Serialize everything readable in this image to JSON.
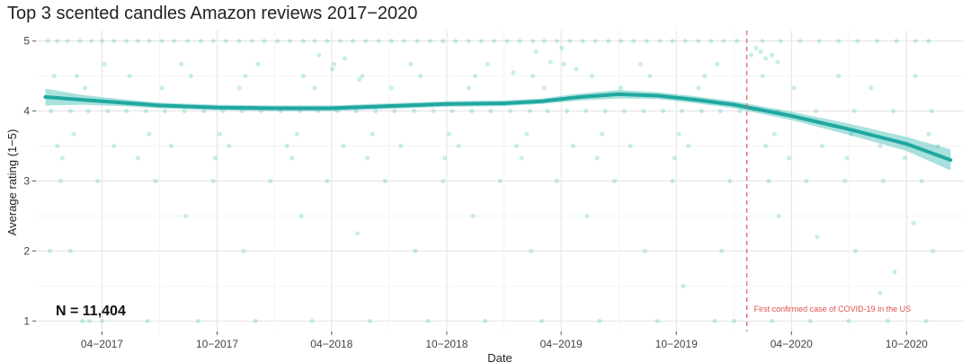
{
  "chart_data": {
    "type": "scatter",
    "title": "Top 3 scented candles Amazon reviews 2017−2020",
    "xlabel": "Date",
    "ylabel": "Average rating (1−5)",
    "xlim": [
      "2016-12-17",
      "2020-12-31"
    ],
    "ylim": [
      0.85,
      5.15
    ],
    "x_ticks": [
      {
        "date": "2017-04-01",
        "label": "04−2017"
      },
      {
        "date": "2017-10-01",
        "label": "10−2017"
      },
      {
        "date": "2018-04-01",
        "label": "04−2018"
      },
      {
        "date": "2018-10-01",
        "label": "10−2018"
      },
      {
        "date": "2019-04-01",
        "label": "04−2019"
      },
      {
        "date": "2019-10-01",
        "label": "10−2019"
      },
      {
        "date": "2020-04-01",
        "label": "04−2020"
      },
      {
        "date": "2020-10-01",
        "label": "10−2020"
      }
    ],
    "y_ticks": [
      1,
      2,
      3,
      4,
      5
    ],
    "grid": true,
    "point_color": "#3dbdb5",
    "smooth_color": "#1fa8a0",
    "band_color": "#3dbdb5",
    "covid_line_color": "#d96a63",
    "n_label": "N = 11,404",
    "annotation": {
      "date": "2020-01-21",
      "text": "First confirmed case of COVID-19 in the US"
    },
    "smooth": [
      {
        "x": "2017-01-01",
        "y": 4.2,
        "se": 0.12
      },
      {
        "x": "2017-03-01",
        "y": 4.16,
        "se": 0.07
      },
      {
        "x": "2017-05-01",
        "y": 4.12,
        "se": 0.05
      },
      {
        "x": "2017-07-01",
        "y": 4.08,
        "se": 0.04
      },
      {
        "x": "2017-10-01",
        "y": 4.05,
        "se": 0.04
      },
      {
        "x": "2018-01-01",
        "y": 4.04,
        "se": 0.04
      },
      {
        "x": "2018-04-01",
        "y": 4.04,
        "se": 0.04
      },
      {
        "x": "2018-07-01",
        "y": 4.07,
        "se": 0.04
      },
      {
        "x": "2018-10-01",
        "y": 4.1,
        "se": 0.04
      },
      {
        "x": "2019-01-01",
        "y": 4.11,
        "se": 0.04
      },
      {
        "x": "2019-03-01",
        "y": 4.14,
        "se": 0.04
      },
      {
        "x": "2019-05-01",
        "y": 4.2,
        "se": 0.05
      },
      {
        "x": "2019-07-01",
        "y": 4.24,
        "se": 0.06
      },
      {
        "x": "2019-09-01",
        "y": 4.22,
        "se": 0.05
      },
      {
        "x": "2019-11-01",
        "y": 4.16,
        "se": 0.05
      },
      {
        "x": "2020-01-01",
        "y": 4.09,
        "se": 0.05
      },
      {
        "x": "2020-04-01",
        "y": 3.93,
        "se": 0.06
      },
      {
        "x": "2020-07-01",
        "y": 3.74,
        "se": 0.08
      },
      {
        "x": "2020-10-01",
        "y": 3.53,
        "se": 0.1
      },
      {
        "x": "2020-12-10",
        "y": 3.3,
        "se": 0.15
      }
    ],
    "points": [
      [
        "2017-01-05",
        5
      ],
      [
        "2017-01-20",
        5
      ],
      [
        "2017-02-05",
        5
      ],
      [
        "2017-02-25",
        5
      ],
      [
        "2017-03-15",
        5
      ],
      [
        "2017-04-01",
        5
      ],
      [
        "2017-04-20",
        5
      ],
      [
        "2017-05-10",
        5
      ],
      [
        "2017-05-28",
        5
      ],
      [
        "2017-06-15",
        5
      ],
      [
        "2017-07-05",
        5
      ],
      [
        "2017-07-25",
        5
      ],
      [
        "2017-08-15",
        5
      ],
      [
        "2017-09-05",
        5
      ],
      [
        "2017-09-25",
        5
      ],
      [
        "2017-10-15",
        5
      ],
      [
        "2017-11-05",
        5
      ],
      [
        "2017-11-25",
        5
      ],
      [
        "2017-12-15",
        5
      ],
      [
        "2018-01-05",
        5
      ],
      [
        "2018-01-25",
        5
      ],
      [
        "2018-02-15",
        5
      ],
      [
        "2018-03-05",
        5
      ],
      [
        "2018-03-25",
        5
      ],
      [
        "2018-04-15",
        5
      ],
      [
        "2018-05-05",
        5
      ],
      [
        "2018-05-25",
        5
      ],
      [
        "2018-06-15",
        5
      ],
      [
        "2018-07-05",
        5
      ],
      [
        "2018-07-25",
        5
      ],
      [
        "2018-08-15",
        5
      ],
      [
        "2018-09-05",
        5
      ],
      [
        "2018-09-25",
        5
      ],
      [
        "2018-10-15",
        5
      ],
      [
        "2018-11-05",
        5
      ],
      [
        "2018-11-25",
        5
      ],
      [
        "2018-12-15",
        5
      ],
      [
        "2019-01-05",
        5
      ],
      [
        "2019-01-25",
        5
      ],
      [
        "2019-02-15",
        5
      ],
      [
        "2019-03-05",
        5
      ],
      [
        "2019-03-25",
        5
      ],
      [
        "2019-04-15",
        5
      ],
      [
        "2019-05-05",
        5
      ],
      [
        "2019-05-25",
        5
      ],
      [
        "2019-06-15",
        5
      ],
      [
        "2019-07-05",
        5
      ],
      [
        "2019-07-25",
        5
      ],
      [
        "2019-08-15",
        5
      ],
      [
        "2019-09-05",
        5
      ],
      [
        "2019-09-25",
        5
      ],
      [
        "2019-10-15",
        5
      ],
      [
        "2019-11-05",
        5
      ],
      [
        "2019-11-25",
        5
      ],
      [
        "2019-12-15",
        5
      ],
      [
        "2020-01-05",
        5
      ],
      [
        "2020-02-15",
        5
      ],
      [
        "2020-03-15",
        5
      ],
      [
        "2020-04-15",
        5
      ],
      [
        "2020-05-15",
        5
      ],
      [
        "2020-06-15",
        5
      ],
      [
        "2020-07-15",
        5
      ],
      [
        "2020-08-15",
        5
      ],
      [
        "2020-09-15",
        5
      ],
      [
        "2020-10-15",
        5
      ],
      [
        "2020-11-05",
        5
      ],
      [
        "2017-01-10",
        4
      ],
      [
        "2017-02-10",
        4
      ],
      [
        "2017-03-10",
        4
      ],
      [
        "2017-04-10",
        4
      ],
      [
        "2017-05-10",
        4
      ],
      [
        "2017-06-10",
        4
      ],
      [
        "2017-07-10",
        4
      ],
      [
        "2017-08-10",
        4
      ],
      [
        "2017-09-10",
        4
      ],
      [
        "2017-10-10",
        4
      ],
      [
        "2017-11-10",
        4
      ],
      [
        "2017-12-10",
        4
      ],
      [
        "2018-01-10",
        4
      ],
      [
        "2018-02-10",
        4
      ],
      [
        "2018-03-10",
        4
      ],
      [
        "2018-04-10",
        4
      ],
      [
        "2018-05-10",
        4
      ],
      [
        "2018-06-10",
        4
      ],
      [
        "2018-07-10",
        4
      ],
      [
        "2018-08-10",
        4
      ],
      [
        "2018-09-10",
        4
      ],
      [
        "2018-10-10",
        4
      ],
      [
        "2018-11-10",
        4
      ],
      [
        "2018-12-10",
        4
      ],
      [
        "2019-01-10",
        4
      ],
      [
        "2019-02-10",
        4
      ],
      [
        "2019-03-10",
        4
      ],
      [
        "2019-04-10",
        4
      ],
      [
        "2019-05-10",
        4
      ],
      [
        "2019-06-10",
        4
      ],
      [
        "2019-07-10",
        4
      ],
      [
        "2019-08-10",
        4
      ],
      [
        "2019-09-10",
        4
      ],
      [
        "2019-10-10",
        4
      ],
      [
        "2019-11-10",
        4
      ],
      [
        "2019-12-10",
        4
      ],
      [
        "2020-01-10",
        4
      ],
      [
        "2020-03-10",
        4
      ],
      [
        "2020-05-10",
        4
      ],
      [
        "2020-07-10",
        4
      ],
      [
        "2020-09-10",
        4
      ],
      [
        "2020-11-10",
        4
      ],
      [
        "2017-01-15",
        4.5
      ],
      [
        "2017-02-20",
        4.5
      ],
      [
        "2017-05-15",
        4.5
      ],
      [
        "2017-08-20",
        4.5
      ],
      [
        "2017-11-15",
        4.5
      ],
      [
        "2018-02-15",
        4.5
      ],
      [
        "2018-05-20",
        4.5
      ],
      [
        "2018-08-20",
        4.5
      ],
      [
        "2018-11-15",
        4.5
      ],
      [
        "2019-02-15",
        4.5
      ],
      [
        "2019-05-20",
        4.5
      ],
      [
        "2019-08-20",
        4.5
      ],
      [
        "2019-11-15",
        4.5
      ],
      [
        "2020-02-15",
        4.5
      ],
      [
        "2020-06-15",
        4.5
      ],
      [
        "2020-10-15",
        4.5
      ],
      [
        "2017-01-20",
        3.5
      ],
      [
        "2017-04-20",
        3.5
      ],
      [
        "2017-07-20",
        3.5
      ],
      [
        "2017-10-20",
        3.5
      ],
      [
        "2018-01-20",
        3.5
      ],
      [
        "2018-04-20",
        3.5
      ],
      [
        "2018-07-20",
        3.5
      ],
      [
        "2018-10-20",
        3.5
      ],
      [
        "2019-01-20",
        3.5
      ],
      [
        "2019-04-20",
        3.5
      ],
      [
        "2019-07-20",
        3.5
      ],
      [
        "2019-10-20",
        3.5
      ],
      [
        "2020-02-20",
        3.5
      ],
      [
        "2020-05-20",
        3.5
      ],
      [
        "2020-08-20",
        3.5
      ],
      [
        "2020-11-20",
        3.5
      ],
      [
        "2017-01-25",
        3
      ],
      [
        "2017-03-25",
        3
      ],
      [
        "2017-06-25",
        3
      ],
      [
        "2017-09-25",
        3
      ],
      [
        "2017-12-25",
        3
      ],
      [
        "2018-03-25",
        3
      ],
      [
        "2018-06-25",
        3
      ],
      [
        "2018-09-25",
        3
      ],
      [
        "2018-12-25",
        3
      ],
      [
        "2019-03-25",
        3
      ],
      [
        "2019-06-25",
        3
      ],
      [
        "2019-09-25",
        3
      ],
      [
        "2019-12-25",
        3
      ],
      [
        "2020-02-25",
        3
      ],
      [
        "2020-04-25",
        3
      ],
      [
        "2020-06-25",
        3
      ],
      [
        "2020-08-25",
        3
      ],
      [
        "2020-10-25",
        3
      ],
      [
        "2017-02-15",
        3.67
      ],
      [
        "2017-06-15",
        3.67
      ],
      [
        "2017-10-05",
        3.67
      ],
      [
        "2018-02-05",
        3.67
      ],
      [
        "2018-06-05",
        3.67
      ],
      [
        "2018-10-05",
        3.67
      ],
      [
        "2019-02-05",
        3.67
      ],
      [
        "2019-06-05",
        3.67
      ],
      [
        "2019-10-05",
        3.67
      ],
      [
        "2020-03-05",
        3.67
      ],
      [
        "2020-07-05",
        3.67
      ],
      [
        "2020-11-05",
        3.67
      ],
      [
        "2017-01-28",
        3.33
      ],
      [
        "2017-05-28",
        3.33
      ],
      [
        "2017-09-28",
        3.33
      ],
      [
        "2018-01-28",
        3.33
      ],
      [
        "2018-05-28",
        3.33
      ],
      [
        "2018-09-28",
        3.33
      ],
      [
        "2019-01-28",
        3.33
      ],
      [
        "2019-05-28",
        3.33
      ],
      [
        "2019-09-28",
        3.33
      ],
      [
        "2020-03-28",
        3.33
      ],
      [
        "2020-06-28",
        3.33
      ],
      [
        "2020-09-28",
        3.33
      ],
      [
        "2017-03-05",
        4.33
      ],
      [
        "2017-07-05",
        4.33
      ],
      [
        "2017-11-05",
        4.33
      ],
      [
        "2018-03-05",
        4.33
      ],
      [
        "2018-07-05",
        4.33
      ],
      [
        "2018-11-05",
        4.33
      ],
      [
        "2019-03-05",
        4.33
      ],
      [
        "2019-07-05",
        4.33
      ],
      [
        "2019-11-05",
        4.33
      ],
      [
        "2020-04-05",
        4.33
      ],
      [
        "2020-08-05",
        4.33
      ],
      [
        "2017-04-05",
        4.67
      ],
      [
        "2017-08-05",
        4.67
      ],
      [
        "2017-12-05",
        4.67
      ],
      [
        "2018-04-05",
        4.67
      ],
      [
        "2018-08-05",
        4.67
      ],
      [
        "2018-12-05",
        4.67
      ],
      [
        "2019-04-05",
        4.67
      ],
      [
        "2019-08-05",
        4.67
      ],
      [
        "2019-12-05",
        4.67
      ],
      [
        "2020-01-28",
        4.8
      ],
      [
        "2020-02-05",
        4.9
      ],
      [
        "2020-02-12",
        4.85
      ],
      [
        "2020-02-20",
        4.75
      ],
      [
        "2020-03-01",
        4.8
      ],
      [
        "2020-03-10",
        4.7
      ],
      [
        "2018-03-12",
        4.8
      ],
      [
        "2018-04-02",
        4.6
      ],
      [
        "2018-04-22",
        4.75
      ],
      [
        "2018-05-15",
        4.45
      ],
      [
        "2019-02-20",
        4.85
      ],
      [
        "2019-03-15",
        4.7
      ],
      [
        "2019-04-02",
        4.9
      ],
      [
        "2019-04-25",
        4.6
      ],
      [
        "2019-01-15",
        4.55
      ],
      [
        "2017-01-08",
        2
      ],
      [
        "2017-02-10",
        2
      ],
      [
        "2017-03-12",
        1
      ],
      [
        "2017-06-12",
        1
      ],
      [
        "2017-08-12",
        2.5
      ],
      [
        "2017-11-12",
        2
      ],
      [
        "2018-02-12",
        2.5
      ],
      [
        "2018-05-12",
        2.25
      ],
      [
        "2018-08-12",
        2
      ],
      [
        "2018-11-12",
        2.5
      ],
      [
        "2019-02-12",
        2
      ],
      [
        "2019-05-12",
        2.5
      ],
      [
        "2019-08-12",
        2
      ],
      [
        "2019-10-12",
        1.5
      ],
      [
        "2019-12-12",
        2
      ],
      [
        "2020-03-12",
        2.5
      ],
      [
        "2020-05-12",
        2.2
      ],
      [
        "2020-07-12",
        2
      ],
      [
        "2020-08-20",
        1.4
      ],
      [
        "2020-09-12",
        1.7
      ],
      [
        "2020-10-12",
        2.4
      ],
      [
        "2020-11-12",
        2
      ],
      [
        "2017-03-01",
        1
      ],
      [
        "2017-04-01",
        1
      ],
      [
        "2017-09-01",
        1
      ],
      [
        "2017-12-01",
        1
      ],
      [
        "2018-03-01",
        1
      ],
      [
        "2018-06-01",
        1
      ],
      [
        "2018-09-01",
        1
      ],
      [
        "2018-12-01",
        1
      ],
      [
        "2019-03-01",
        1
      ],
      [
        "2019-06-01",
        1
      ],
      [
        "2019-09-01",
        1
      ],
      [
        "2019-12-01",
        1
      ],
      [
        "2020-01-01",
        1
      ],
      [
        "2020-03-01",
        1
      ],
      [
        "2020-05-01",
        1
      ],
      [
        "2020-07-01",
        1
      ],
      [
        "2020-09-01",
        1
      ],
      [
        "2020-11-01",
        1
      ]
    ]
  }
}
